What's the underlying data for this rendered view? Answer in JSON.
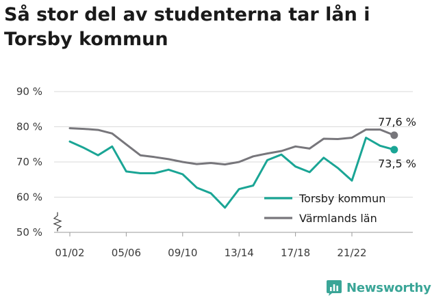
{
  "title": "Så stor del av studenterna tar lån i Torsby kommun",
  "brand": {
    "name": "Newsworthy",
    "icon": "newsworthy-logo-icon",
    "color": "#3aa597"
  },
  "chart_data": {
    "type": "line",
    "title": "Så stor del av studenterna tar lån i Torsby kommun",
    "xlabel": "",
    "ylabel": "",
    "ylim": [
      50,
      90
    ],
    "y_axis_break": true,
    "y_ticks": [
      50,
      60,
      70,
      80,
      90
    ],
    "y_tick_labels": [
      "50 %",
      "60 %",
      "70 %",
      "80 %",
      "90 %"
    ],
    "grid": "horizontal",
    "legend_position": "bottom-right",
    "x_tick_labels": [
      "01/02",
      "05/06",
      "09/10",
      "13/14",
      "17/18",
      "21/22"
    ],
    "x_tick_indices": [
      0,
      4,
      8,
      12,
      16,
      20
    ],
    "series": [
      {
        "name": "Torsby kommun",
        "color": "#1aa595",
        "end_label": "73,5 %",
        "values": [
          75.8,
          74.0,
          71.9,
          74.4,
          67.3,
          66.8,
          66.8,
          67.8,
          66.5,
          62.7,
          61.1,
          57.0,
          62.3,
          63.3,
          70.5,
          72.1,
          68.7,
          67.1,
          71.2,
          68.3,
          64.7,
          76.9,
          74.6,
          73.5
        ]
      },
      {
        "name": "Värmlands län",
        "color": "#77767b",
        "end_label": "77,6 %",
        "values": [
          79.6,
          79.4,
          79.1,
          78.1,
          75.0,
          71.9,
          71.4,
          70.8,
          70.0,
          69.4,
          69.7,
          69.3,
          70.0,
          71.6,
          72.4,
          73.1,
          74.4,
          73.8,
          76.6,
          76.5,
          76.9,
          79.2,
          79.2,
          77.6
        ]
      }
    ]
  }
}
